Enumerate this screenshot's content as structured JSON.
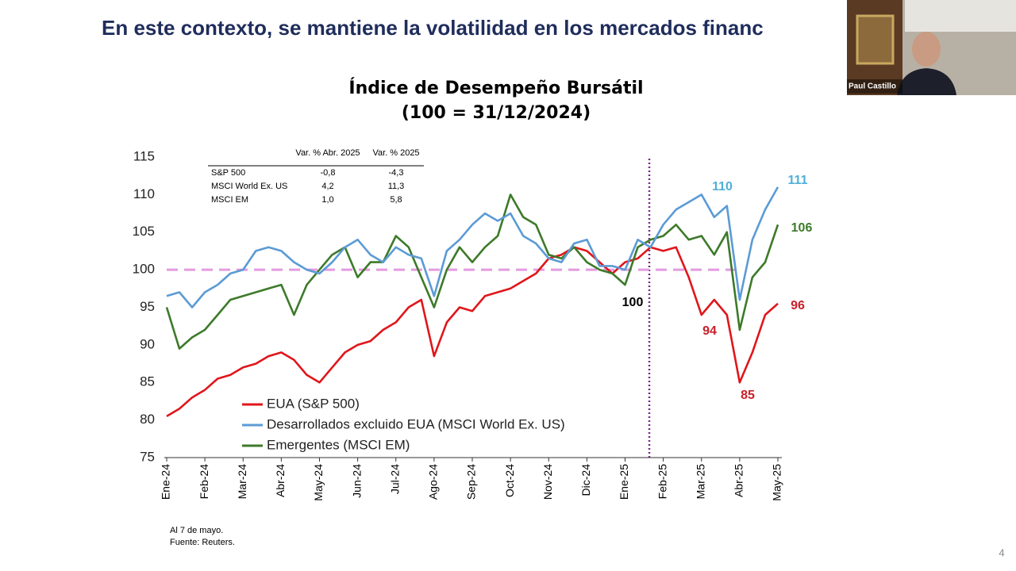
{
  "slide_title": "En este contexto, se mantiene la volatilidad en los mercados financ",
  "presenter": "Paul Castillo",
  "page_number": "4",
  "notes": [
    "Al 7 de mayo.",
    "Fuente: Reuters."
  ],
  "chart_data": {
    "type": "line",
    "title": [
      "Índice de Desempeño Bursátil",
      "(100 = 31/12/2024)"
    ],
    "categories": [
      "Ene-24",
      null,
      null,
      "Feb-24",
      null,
      null,
      "Mar-24",
      null,
      null,
      "Abr-24",
      null,
      null,
      "May-24",
      null,
      null,
      "Jun-24",
      null,
      null,
      "Jul-24",
      null,
      null,
      "Ago-24",
      null,
      null,
      "Sep-24",
      null,
      null,
      "Oct-24",
      null,
      null,
      "Nov-24",
      null,
      null,
      "Dic-24",
      null,
      null,
      "Ene-25",
      null,
      null,
      "Feb-25",
      null,
      null,
      "Mar-25",
      null,
      null,
      "Abr-25",
      null,
      null,
      "May-25"
    ],
    "series": [
      {
        "name": "EUA (S&P 500)",
        "color": "#e0161b",
        "values": [
          80.5,
          81.5,
          83,
          84,
          85.5,
          86,
          87,
          87.5,
          88.5,
          89,
          88,
          86,
          85,
          87,
          89,
          90,
          90.5,
          92,
          93,
          95,
          96,
          88.5,
          93,
          95,
          94.5,
          96.5,
          97,
          97.5,
          98.5,
          99.5,
          101.5,
          102,
          103,
          102.5,
          101,
          99.5,
          101,
          101.5,
          103,
          102.5,
          103,
          99,
          94,
          96,
          94,
          85,
          89,
          94,
          95.5
        ]
      },
      {
        "name": "Desarrollados excluido EUA (MSCI World Ex. US)",
        "color": "#5b9bd5",
        "values": [
          96.5,
          97,
          95,
          97,
          98,
          99.5,
          100,
          102.5,
          103,
          102.5,
          101,
          100,
          99.5,
          101,
          103,
          104,
          102,
          101,
          103,
          102,
          101.5,
          96.5,
          102.5,
          104,
          106,
          107.5,
          106.5,
          107.5,
          104.5,
          103.5,
          101.5,
          101,
          103.5,
          104,
          100.5,
          100.5,
          100,
          104,
          103,
          106,
          108,
          109,
          110,
          107,
          108.5,
          96,
          104,
          108,
          111
        ]
      },
      {
        "name": "Emergentes (MSCI EM)",
        "color": "#3d7a2a",
        "values": [
          95,
          89.5,
          91,
          92,
          94,
          96,
          96.5,
          97,
          97.5,
          98,
          94,
          98,
          100,
          102,
          103,
          99,
          101,
          101,
          104.5,
          103,
          99,
          95,
          100,
          103,
          101,
          103,
          104.5,
          110,
          107,
          106,
          102,
          101.5,
          103,
          101,
          100,
          99.5,
          98,
          103,
          104,
          104.5,
          106,
          104,
          104.5,
          102,
          105,
          92,
          99,
          101,
          106
        ]
      }
    ],
    "ylim": [
      75,
      115
    ],
    "yticks": [
      75,
      80,
      85,
      90,
      95,
      100,
      105,
      110,
      115
    ],
    "reference_line": 100,
    "reference_color": "#e39be0",
    "annotations": [
      {
        "text": 110,
        "color": "#4fb0d8"
      },
      {
        "text": 111,
        "color": "#4fb0d8"
      },
      {
        "text": 106,
        "color": "#3d7a2a"
      },
      {
        "text": 100,
        "color": "#000000"
      },
      {
        "text": 94,
        "color": "#c8202a"
      },
      {
        "text": 85,
        "color": "#c8202a"
      },
      {
        "text": 96,
        "color": "#c8202a"
      }
    ],
    "table": {
      "header": [
        "Var. % Abr. 2025",
        "Var. % 2025"
      ],
      "rows": [
        [
          "S&P 500",
          "-0,8",
          "-4,3"
        ],
        [
          "MSCI World Ex. US",
          "4,2",
          "11,3"
        ],
        [
          "MSCI EM",
          "1,0",
          "5,8"
        ]
      ]
    }
  }
}
